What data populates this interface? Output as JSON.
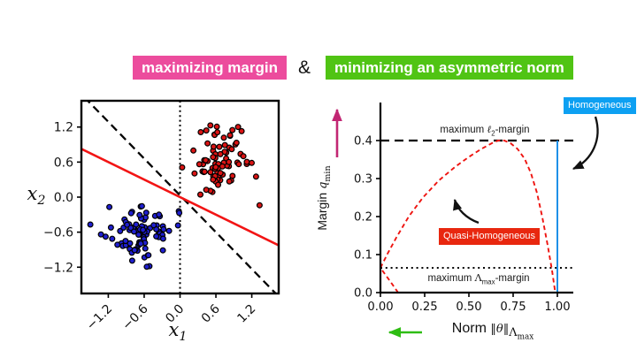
{
  "slide": {
    "title": {
      "left": {
        "text": "maximizing margin",
        "bg": "#EC4C9D",
        "fg": "#ffffff"
      },
      "amp": "&",
      "right": {
        "text": "minimizing an asymmetric norm",
        "bg": "#50C414",
        "fg": "#ffffff"
      }
    },
    "arrows": {
      "margin_axis": {
        "name": "margin-direction-arrow",
        "color": "#C22673",
        "direction": "up"
      },
      "norm_axis": {
        "name": "norm-direction-arrow",
        "color": "#2EBD13",
        "direction": "left"
      },
      "annotation_color": "#111111"
    }
  },
  "chart_data": [
    {
      "type": "scatter",
      "xlabel_parts": {
        "sym": "x",
        "sub": "1"
      },
      "ylabel_parts": {
        "sym": "x",
        "sub": "2"
      },
      "xlim": [
        -1.65,
        1.65
      ],
      "ylim": [
        -1.65,
        1.65
      ],
      "grid": false,
      "xticks": {
        "values": [
          -1.2,
          -0.6,
          0.0,
          0.6,
          1.2
        ],
        "labels": [
          "−1.2",
          "−0.6",
          "0.0",
          "0.6",
          "1.2"
        ],
        "rotation": 45
      },
      "yticks": {
        "values": [
          1.2,
          0.6,
          0.0,
          -0.6,
          -1.2
        ],
        "labels": [
          "1.2",
          "0.6",
          "0.0",
          "−0.6",
          "−1.2"
        ]
      },
      "clusters": [
        {
          "name": "positive-class-points",
          "color": "#DB1414",
          "edge": "#000000",
          "center": [
            0.68,
            0.6
          ],
          "std": 0.27,
          "count": 80,
          "seed": 20,
          "extra_points": [
            [
              1.33,
              -0.14
            ]
          ]
        },
        {
          "name": "negative-class-points",
          "color": "#1F1FD0",
          "edge": "#000000",
          "center": [
            -0.65,
            -0.6
          ],
          "std": 0.27,
          "count": 85,
          "seed": 5,
          "extra_points": [
            [
              -1.5,
              -0.47
            ]
          ]
        }
      ],
      "lines": [
        {
          "name": "dashed-separator",
          "style": "dashed",
          "color": "#000000",
          "points": [
            [
              -1.6,
              1.71
            ],
            [
              1.6,
              -1.65
            ]
          ]
        },
        {
          "name": "zero-axis-dotted",
          "style": "dotted",
          "color": "#000000",
          "points": [
            [
              0.0,
              -1.65
            ],
            [
              0.0,
              1.65
            ]
          ]
        },
        {
          "name": "max-margin-separator",
          "style": "solid",
          "color": "#F21414",
          "points": [
            [
              -1.7,
              0.85
            ],
            [
              1.7,
              -0.85
            ]
          ]
        }
      ]
    },
    {
      "type": "line",
      "xlabel_parts": {
        "pre": "Norm ",
        "open": "‖",
        "sym": "θ",
        "close": "‖",
        "sub": "Λ",
        "subsub": "max"
      },
      "ylabel_parts": {
        "pre": "Margin ",
        "sym": "q",
        "sub": "min"
      },
      "xlim": [
        0,
        1.09
      ],
      "ylim": [
        0,
        0.5
      ],
      "grid": false,
      "xticks": {
        "values": [
          0.0,
          0.25,
          0.5,
          0.75,
          1.0
        ],
        "labels": [
          "0.00",
          "0.25",
          "0.50",
          "0.75",
          "1.00"
        ]
      },
      "yticks": {
        "values": [
          0.0,
          0.1,
          0.2,
          0.3,
          0.4
        ],
        "labels": [
          "0.0",
          "0.1",
          "0.2",
          "0.3",
          "0.4"
        ]
      },
      "reference_lines": [
        {
          "name": "max-l2-margin-line",
          "style": "dashed",
          "color": "#000000",
          "y": 0.4,
          "label_parts": {
            "pre": "maximum ",
            "sym": "ℓ",
            "sub": "2",
            "post": "-margin"
          }
        },
        {
          "name": "max-lambda-margin-line",
          "style": "dotted",
          "color": "#000000",
          "y": 0.065,
          "label_parts": {
            "pre": "maximum ",
            "sym": "Λ",
            "sub": "max",
            "post": "-margin"
          }
        }
      ],
      "series": [
        {
          "name": "quasi-homogeneous-margin-curve",
          "style": "dashed",
          "color": "#EE1410",
          "points": [
            [
              0.1,
              0.0
            ],
            [
              0.05,
              0.033
            ],
            [
              0.0,
              0.065
            ],
            [
              0.04,
              0.102
            ],
            [
              0.09,
              0.145
            ],
            [
              0.16,
              0.2
            ],
            [
              0.24,
              0.25
            ],
            [
              0.33,
              0.295
            ],
            [
              0.42,
              0.33
            ],
            [
              0.5,
              0.357
            ],
            [
              0.57,
              0.378
            ],
            [
              0.63,
              0.393
            ],
            [
              0.665,
              0.4
            ],
            [
              0.7,
              0.4
            ],
            [
              0.735,
              0.393
            ],
            [
              0.775,
              0.378
            ],
            [
              0.815,
              0.352
            ],
            [
              0.85,
              0.315
            ],
            [
              0.885,
              0.262
            ],
            [
              0.915,
              0.198
            ],
            [
              0.945,
              0.125
            ],
            [
              0.97,
              0.058
            ],
            [
              0.988,
              0.0
            ]
          ]
        },
        {
          "name": "homogeneous-path",
          "style": "solid",
          "color": "#1E90E8",
          "points": [
            [
              1.0,
              0.0
            ],
            [
              1.0,
              0.4
            ]
          ]
        }
      ],
      "annotations": [
        {
          "label": "Homogeneous",
          "bg": "#0DA0F2",
          "fg": "#ffffff"
        },
        {
          "label": "Quasi-Homogeneous",
          "bg": "#E8270F",
          "fg": "#ffffff"
        }
      ]
    }
  ]
}
